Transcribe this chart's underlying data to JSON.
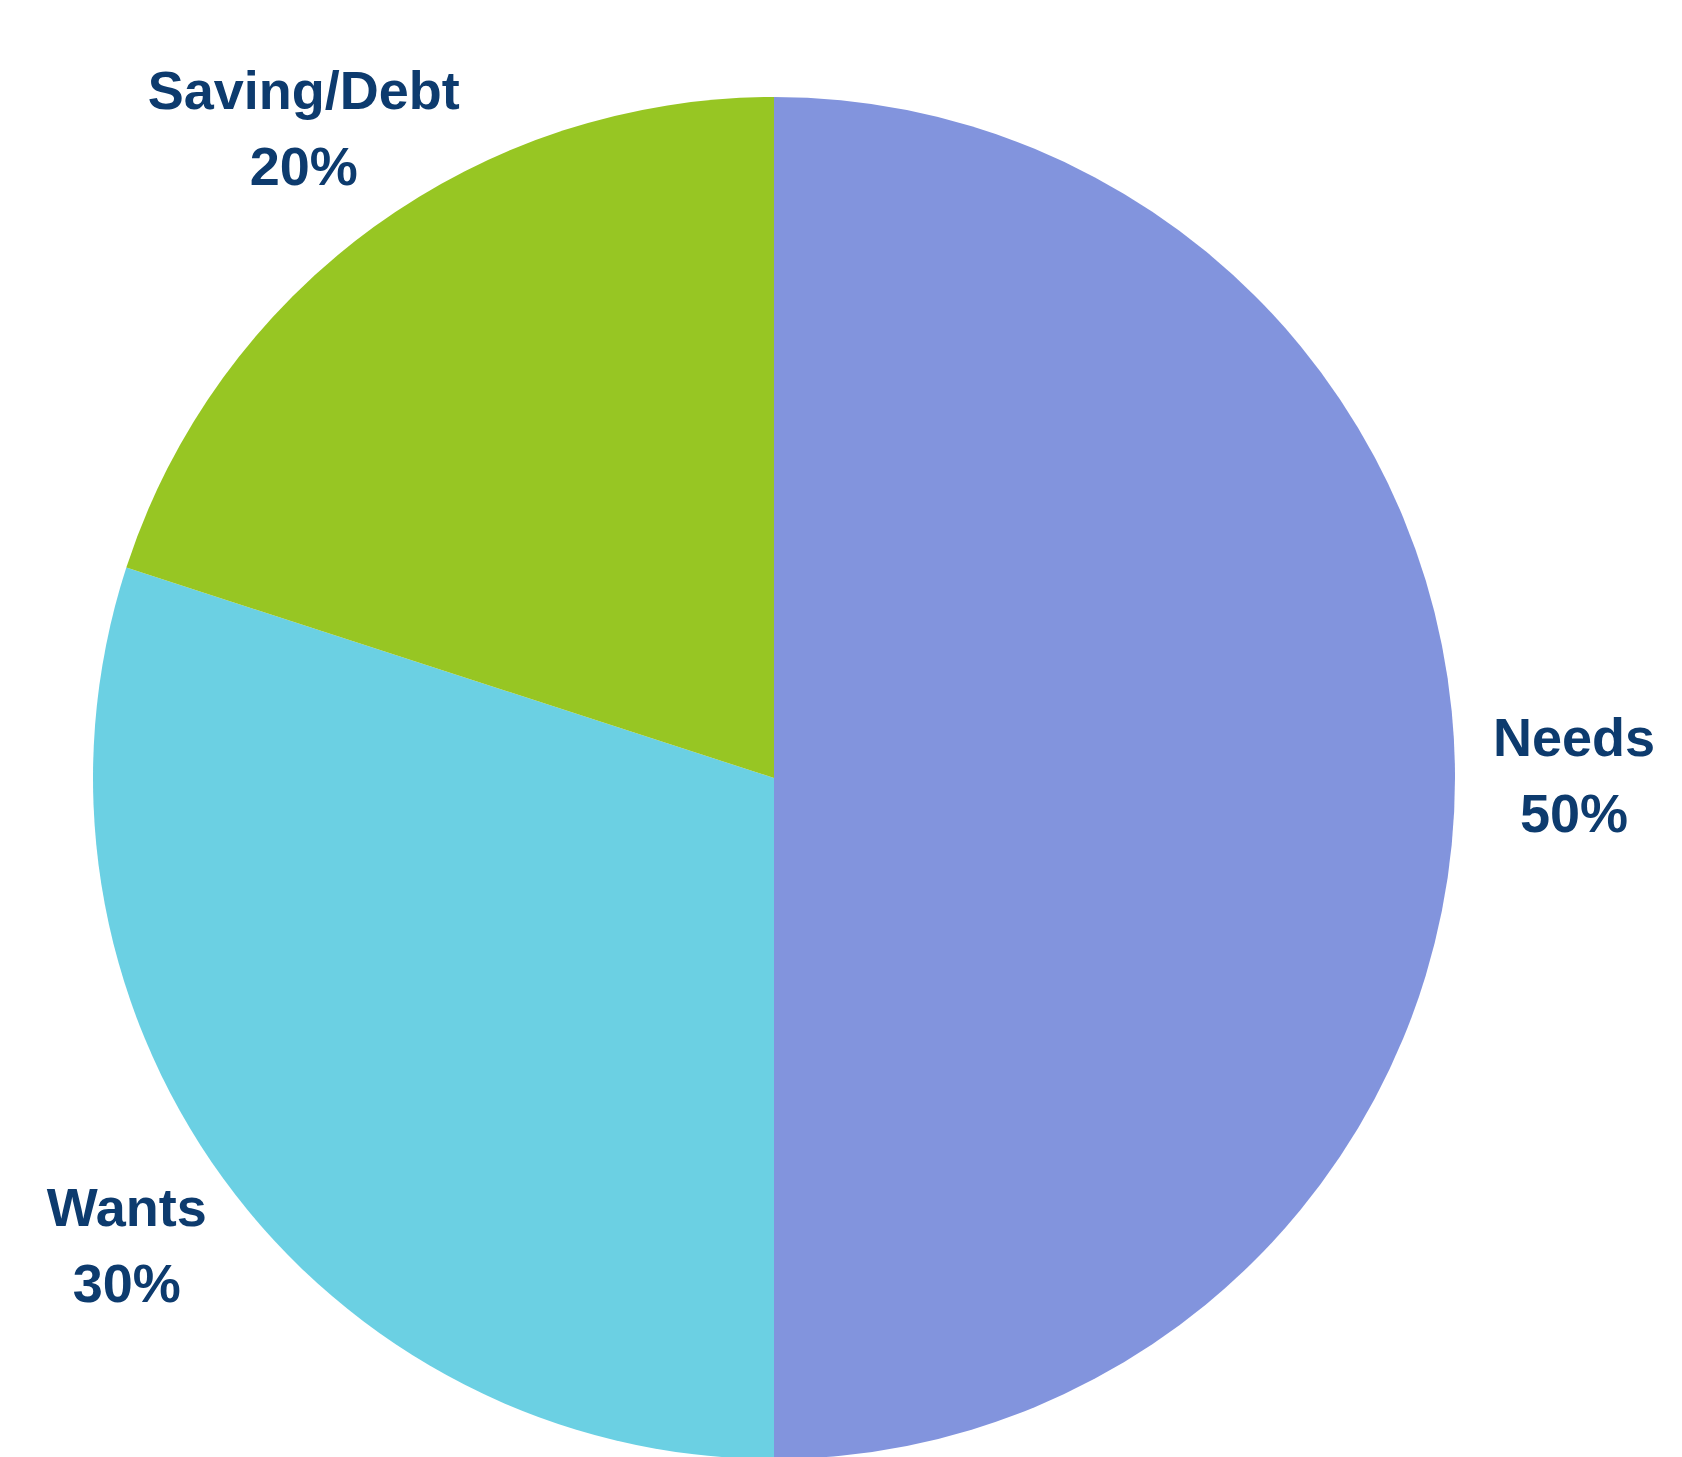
{
  "chart_data": {
    "type": "pie",
    "categories": [
      "Needs",
      "Wants",
      "Saving/Debt"
    ],
    "values": [
      50,
      30,
      20
    ],
    "colors": [
      "#8294dd",
      "#6bd0e3",
      "#97c623"
    ],
    "value_labels": [
      "50%",
      "30%",
      "20%"
    ]
  }
}
